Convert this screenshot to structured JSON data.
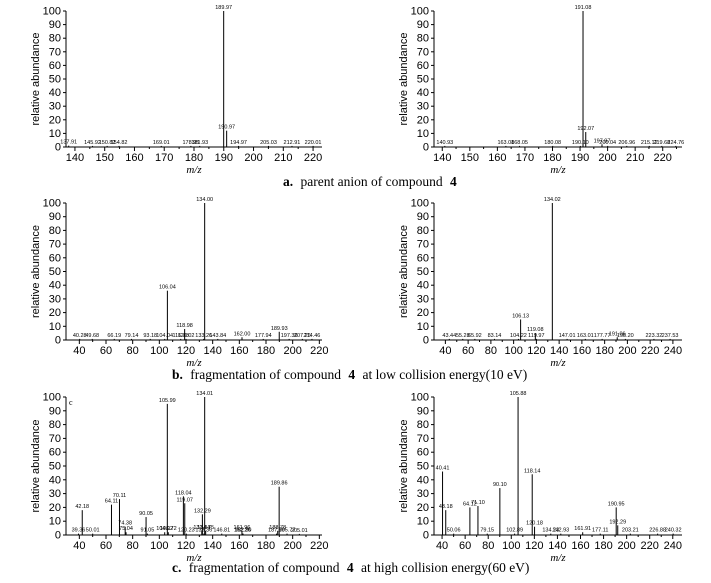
{
  "captions": [
    {
      "letter": "a.",
      "text": "parent anion of compound",
      "compound": "4",
      "suffix": ""
    },
    {
      "letter": "b.",
      "text": "fragmentation of compound",
      "compound": "4",
      "suffix": "at low collision energy(10 eV)"
    },
    {
      "letter": "c.",
      "text": "fragmentation of compound",
      "compound": "4",
      "suffix": "at high collision energy(60 eV)"
    }
  ],
  "chart_data": [
    {
      "type": "bar",
      "id": "a-left",
      "xlabel": "m/z",
      "ylabel": "relative abundance",
      "xlim": [
        137,
        223
      ],
      "ylim": [
        0,
        100
      ],
      "xticks": [
        140,
        150,
        160,
        170,
        180,
        190,
        200,
        210,
        220
      ],
      "yticks": [
        0,
        10,
        20,
        30,
        40,
        50,
        60,
        70,
        80,
        90,
        100
      ],
      "peaks": [
        {
          "x": 137.91,
          "y": 1,
          "label": "137.91"
        },
        {
          "x": 145.92,
          "y": 0.8,
          "label": "145.92"
        },
        {
          "x": 150.82,
          "y": 0.8,
          "label": "150.82"
        },
        {
          "x": 154.82,
          "y": 0.8,
          "label": "154.82"
        },
        {
          "x": 169.01,
          "y": 0.8,
          "label": "169.01"
        },
        {
          "x": 178.95,
          "y": 0.8,
          "label": "178.95"
        },
        {
          "x": 181.93,
          "y": 0.8,
          "label": "181.93"
        },
        {
          "x": 189.97,
          "y": 100,
          "label": "189.97"
        },
        {
          "x": 190.97,
          "y": 12,
          "label": "190.97"
        },
        {
          "x": 194.97,
          "y": 0.8,
          "label": "194.97"
        },
        {
          "x": 205.03,
          "y": 0.8,
          "label": "205.03"
        },
        {
          "x": 212.91,
          "y": 0.8,
          "label": "212.91"
        },
        {
          "x": 220.01,
          "y": 0.8,
          "label": "220.01"
        }
      ]
    },
    {
      "type": "bar",
      "id": "a-right",
      "xlabel": "m/z",
      "ylabel": "relative abundance",
      "xlim": [
        137,
        227
      ],
      "ylim": [
        0,
        100
      ],
      "xticks": [
        140,
        150,
        160,
        170,
        180,
        190,
        200,
        210,
        220
      ],
      "yticks": [
        0,
        10,
        20,
        30,
        40,
        50,
        60,
        70,
        80,
        90,
        100
      ],
      "peaks": [
        {
          "x": 140.93,
          "y": 0.8,
          "label": "140.93"
        },
        {
          "x": 163.08,
          "y": 0.8,
          "label": "163.08"
        },
        {
          "x": 168.05,
          "y": 0.8,
          "label": "168.05"
        },
        {
          "x": 180.08,
          "y": 0.8,
          "label": "180.08"
        },
        {
          "x": 190.1,
          "y": 0.8,
          "label": "190.10"
        },
        {
          "x": 191.08,
          "y": 100,
          "label": "191.08"
        },
        {
          "x": 192.07,
          "y": 11,
          "label": "192.07"
        },
        {
          "x": 197.97,
          "y": 2,
          "label": "197.97"
        },
        {
          "x": 200.04,
          "y": 0.8,
          "label": "200.04"
        },
        {
          "x": 206.96,
          "y": 0.8,
          "label": "206.96"
        },
        {
          "x": 215.12,
          "y": 0.8,
          "label": "215.12"
        },
        {
          "x": 219.68,
          "y": 0.8,
          "label": "219.68"
        },
        {
          "x": 224.76,
          "y": 0.8,
          "label": "224.76"
        }
      ]
    },
    {
      "type": "bar",
      "id": "b-left",
      "xlabel": "m/z",
      "ylabel": "relative abundance",
      "xlim": [
        30,
        222
      ],
      "ylim": [
        0,
        100
      ],
      "xticks": [
        40,
        60,
        80,
        100,
        120,
        140,
        160,
        180,
        200,
        220
      ],
      "yticks": [
        0,
        10,
        20,
        30,
        40,
        50,
        60,
        70,
        80,
        90,
        100
      ],
      "peaks": [
        {
          "x": 40.28,
          "y": 0.8,
          "label": "40.28"
        },
        {
          "x": 49.68,
          "y": 0.8,
          "label": "49.68"
        },
        {
          "x": 66.19,
          "y": 0.8,
          "label": "66.19"
        },
        {
          "x": 79.14,
          "y": 0.8,
          "label": "79.14"
        },
        {
          "x": 93.18,
          "y": 0.8,
          "label": "93.18"
        },
        {
          "x": 104.04,
          "y": 0.8,
          "label": "104.04"
        },
        {
          "x": 106.04,
          "y": 36,
          "label": "106.04"
        },
        {
          "x": 116.03,
          "y": 0.8,
          "label": "116.03"
        },
        {
          "x": 118.98,
          "y": 8,
          "label": "118.98"
        },
        {
          "x": 120.02,
          "y": 0.8,
          "label": "120.02"
        },
        {
          "x": 133.26,
          "y": 0.8,
          "label": "133.26"
        },
        {
          "x": 134.0,
          "y": 100,
          "label": "134.00"
        },
        {
          "x": 143.84,
          "y": 0.8,
          "label": "143.84"
        },
        {
          "x": 162.0,
          "y": 2,
          "label": "162.00"
        },
        {
          "x": 177.94,
          "y": 0.8,
          "label": "177.94"
        },
        {
          "x": 189.93,
          "y": 6,
          "label": "189.93"
        },
        {
          "x": 197.36,
          "y": 0.8,
          "label": "197.36"
        },
        {
          "x": 207.26,
          "y": 0.8,
          "label": "207.26"
        },
        {
          "x": 214.46,
          "y": 0.8,
          "label": "214.46"
        }
      ]
    },
    {
      "type": "bar",
      "id": "b-right",
      "xlabel": "m/z",
      "ylabel": "relative abundance",
      "xlim": [
        30,
        248
      ],
      "ylim": [
        0,
        100
      ],
      "xticks": [
        40,
        60,
        80,
        100,
        120,
        140,
        160,
        180,
        200,
        220,
        240
      ],
      "yticks": [
        0,
        10,
        20,
        30,
        40,
        50,
        60,
        70,
        80,
        90,
        100
      ],
      "peaks": [
        {
          "x": 43.44,
          "y": 0.8,
          "label": "43.44"
        },
        {
          "x": 55.28,
          "y": 0.8,
          "label": "55.28"
        },
        {
          "x": 65.92,
          "y": 0.8,
          "label": "65.92"
        },
        {
          "x": 83.14,
          "y": 0.8,
          "label": "83.14"
        },
        {
          "x": 104.22,
          "y": 0.8,
          "label": "104.22"
        },
        {
          "x": 106.13,
          "y": 15,
          "label": "106.13"
        },
        {
          "x": 119.08,
          "y": 5,
          "label": "119.08"
        },
        {
          "x": 119.97,
          "y": 0.8,
          "label": "119.97"
        },
        {
          "x": 134.02,
          "y": 100,
          "label": "134.02"
        },
        {
          "x": 147.01,
          "y": 0.8,
          "label": "147.01"
        },
        {
          "x": 163.01,
          "y": 0.8,
          "label": "163.01"
        },
        {
          "x": 177.77,
          "y": 0.8,
          "label": "177.77"
        },
        {
          "x": 191.06,
          "y": 2,
          "label": "191.06"
        },
        {
          "x": 198.2,
          "y": 0.8,
          "label": "198.20"
        },
        {
          "x": 223.32,
          "y": 0.8,
          "label": "223.32"
        },
        {
          "x": 237.53,
          "y": 0.8,
          "label": "237.53"
        }
      ]
    },
    {
      "type": "bar",
      "id": "c-left",
      "xlabel": "m/z",
      "ylabel": "relative abundance",
      "corner_label": "c",
      "xlim": [
        30,
        222
      ],
      "ylim": [
        0,
        100
      ],
      "xticks": [
        40,
        60,
        80,
        100,
        120,
        140,
        160,
        180,
        200,
        220
      ],
      "yticks": [
        0,
        10,
        20,
        30,
        40,
        50,
        60,
        70,
        80,
        90,
        100
      ],
      "peaks": [
        {
          "x": 39.36,
          "y": 1,
          "label": "39.36"
        },
        {
          "x": 42.18,
          "y": 18,
          "label": "42.18"
        },
        {
          "x": 50.01,
          "y": 1,
          "label": "50.01"
        },
        {
          "x": 64.11,
          "y": 22,
          "label": "64.11"
        },
        {
          "x": 70.11,
          "y": 26,
          "label": "70.11"
        },
        {
          "x": 74.38,
          "y": 6,
          "label": "74.38"
        },
        {
          "x": 75.04,
          "y": 2,
          "label": "75.04"
        },
        {
          "x": 90.05,
          "y": 13,
          "label": "90.05"
        },
        {
          "x": 91.05,
          "y": 1,
          "label": "91.05"
        },
        {
          "x": 104.02,
          "y": 2,
          "label": "104.02"
        },
        {
          "x": 105.99,
          "y": 95,
          "label": "105.99"
        },
        {
          "x": 106.72,
          "y": 2,
          "label": "106.72"
        },
        {
          "x": 118.04,
          "y": 28,
          "label": "118.04"
        },
        {
          "x": 119.07,
          "y": 23,
          "label": "119.07"
        },
        {
          "x": 120.23,
          "y": 1,
          "label": "120.23"
        },
        {
          "x": 131.84,
          "y": 3,
          "label": "131.84"
        },
        {
          "x": 132.29,
          "y": 15,
          "label": "132.29"
        },
        {
          "x": 133.36,
          "y": 1,
          "label": "133.36"
        },
        {
          "x": 134.01,
          "y": 100,
          "label": "134.01"
        },
        {
          "x": 134.75,
          "y": 3,
          "label": "134.75"
        },
        {
          "x": 146.81,
          "y": 1,
          "label": "146.81"
        },
        {
          "x": 161.96,
          "y": 3,
          "label": "161.96"
        },
        {
          "x": 162.26,
          "y": 1,
          "label": "162.26"
        },
        {
          "x": 162.8,
          "y": 1,
          "label": "162.80"
        },
        {
          "x": 187.9,
          "y": 1,
          "label": "187.90"
        },
        {
          "x": 188.78,
          "y": 3,
          "label": "188.78"
        },
        {
          "x": 189.86,
          "y": 35,
          "label": "189.86"
        },
        {
          "x": 195.77,
          "y": 1,
          "label": "195.77"
        },
        {
          "x": 205.01,
          "y": 0.8,
          "label": "205.01"
        }
      ]
    },
    {
      "type": "bar",
      "id": "c-right",
      "xlabel": "m/z",
      "ylabel": "relative abundance",
      "xlim": [
        33,
        248
      ],
      "ylim": [
        0,
        100
      ],
      "xticks": [
        40,
        60,
        80,
        100,
        120,
        140,
        160,
        180,
        200,
        220,
        240
      ],
      "yticks": [
        0,
        10,
        20,
        30,
        40,
        50,
        60,
        70,
        80,
        90,
        100
      ],
      "peaks": [
        {
          "x": 40.41,
          "y": 46,
          "label": "40.41"
        },
        {
          "x": 43.18,
          "y": 18,
          "label": "43.18"
        },
        {
          "x": 50.06,
          "y": 1,
          "label": "50.06"
        },
        {
          "x": 64.12,
          "y": 20,
          "label": "64.12"
        },
        {
          "x": 71.1,
          "y": 21,
          "label": "71.10"
        },
        {
          "x": 79.15,
          "y": 1,
          "label": "79.15"
        },
        {
          "x": 90.1,
          "y": 34,
          "label": "90.10"
        },
        {
          "x": 102.89,
          "y": 1,
          "label": "102.89"
        },
        {
          "x": 105.88,
          "y": 100,
          "label": "105.88"
        },
        {
          "x": 118.14,
          "y": 44,
          "label": "118.14"
        },
        {
          "x": 120.18,
          "y": 6,
          "label": "120.18"
        },
        {
          "x": 134.23,
          "y": 1,
          "label": "134.23"
        },
        {
          "x": 142.93,
          "y": 1,
          "label": "142.93"
        },
        {
          "x": 161.91,
          "y": 2,
          "label": "161.91"
        },
        {
          "x": 177.11,
          "y": 1,
          "label": "177.11"
        },
        {
          "x": 190.95,
          "y": 20,
          "label": "190.95"
        },
        {
          "x": 192.29,
          "y": 7,
          "label": "192.29"
        },
        {
          "x": 203.21,
          "y": 1,
          "label": "203.21"
        },
        {
          "x": 226.88,
          "y": 1,
          "label": "226.88"
        },
        {
          "x": 240.32,
          "y": 1,
          "label": "240.32"
        }
      ]
    }
  ]
}
